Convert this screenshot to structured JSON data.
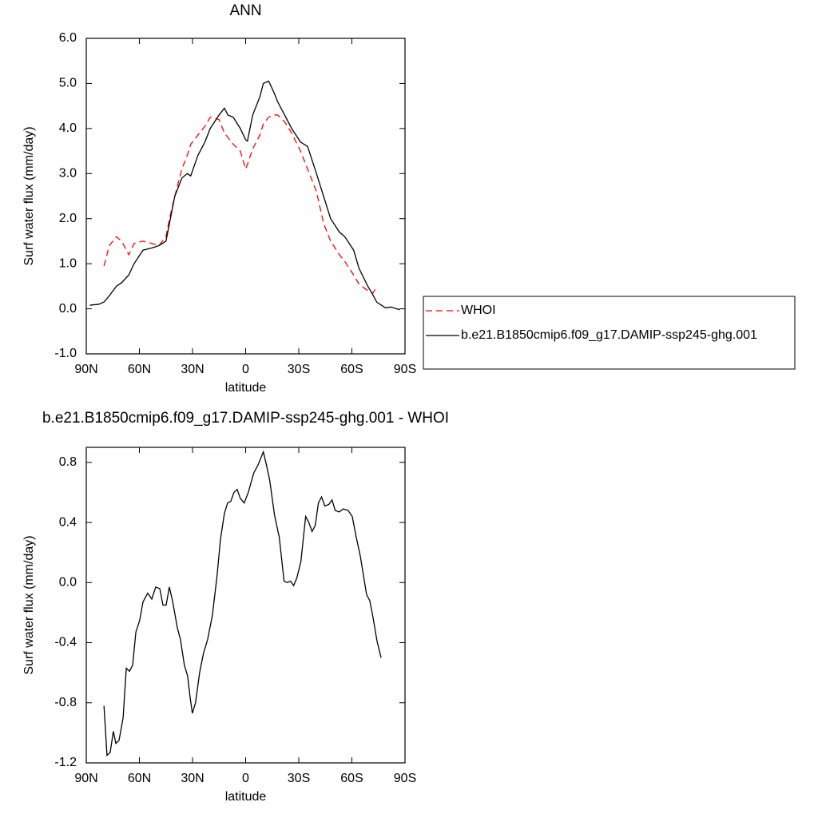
{
  "chart_data": [
    {
      "type": "line",
      "title": "ANN",
      "x_label": "latitude",
      "y_label": "Surf water flux (mm/day)",
      "x": [
        88,
        83,
        80,
        77,
        73,
        70,
        66,
        63,
        58,
        53,
        49,
        45,
        43,
        40,
        36,
        33,
        31,
        27,
        23,
        20,
        15,
        12,
        10,
        7,
        3,
        0,
        -1,
        -4,
        -8,
        -10,
        -13,
        -16,
        -18,
        -22,
        -26,
        -31,
        -35,
        -40,
        -44,
        -48,
        -53,
        -56,
        -61,
        -64,
        -69,
        -72,
        -74,
        -79,
        -82,
        -87
      ],
      "series": [
        {
          "name": "WHOI",
          "color": "#ff0000",
          "linestyle": "dashed",
          "values": [
            null,
            null,
            0.95,
            1.4,
            1.6,
            1.5,
            1.2,
            1.45,
            1.5,
            1.45,
            1.4,
            1.6,
            2.0,
            2.5,
            3.1,
            3.4,
            3.65,
            3.85,
            4.05,
            4.25,
            4.2,
            3.9,
            3.8,
            3.65,
            3.5,
            3.1,
            3.2,
            3.55,
            3.85,
            4.1,
            4.25,
            4.3,
            4.3,
            4.15,
            3.9,
            3.5,
            3.1,
            2.6,
            1.9,
            1.5,
            1.2,
            1.05,
            0.75,
            0.55,
            0.4,
            0.35,
            0.5,
            null,
            null,
            null
          ]
        },
        {
          "name": "b.e21.B1850cmip6.f09_g17.DAMIP-ssp245-ghg.001",
          "color": "#000000",
          "linestyle": "solid",
          "values": [
            0.08,
            0.1,
            0.15,
            0.29,
            0.5,
            0.58,
            0.75,
            1.0,
            1.3,
            1.35,
            1.4,
            1.5,
            1.9,
            2.5,
            2.9,
            3.0,
            2.95,
            3.4,
            3.7,
            4.0,
            4.3,
            4.45,
            4.3,
            4.25,
            4.0,
            3.75,
            3.72,
            4.3,
            4.7,
            5.0,
            5.05,
            4.8,
            4.6,
            4.3,
            4.0,
            3.7,
            3.6,
            3.0,
            2.5,
            2.0,
            1.7,
            1.6,
            1.3,
            0.9,
            0.5,
            0.3,
            0.15,
            0.02,
            0.04,
            -0.02
          ]
        }
      ],
      "xlim": [
        90,
        -90
      ],
      "xticks": [
        {
          "value": 90,
          "label": "90N"
        },
        {
          "value": 60,
          "label": "60N"
        },
        {
          "value": 30,
          "label": "30N"
        },
        0,
        {
          "value": -30,
          "label": "30S"
        },
        {
          "value": -60,
          "label": "60S"
        },
        {
          "value": -90,
          "label": "90S"
        }
      ],
      "ylim": [
        -1,
        6
      ],
      "yticks": [
        {
          "value": -1,
          "label": "-1.0"
        },
        {
          "value": 0,
          "label": "0.0"
        },
        {
          "value": 1,
          "label": "1.0"
        },
        {
          "value": 2,
          "label": "2.0"
        },
        {
          "value": 3,
          "label": "3.0"
        },
        {
          "value": 4,
          "label": "4.0"
        },
        {
          "value": 5,
          "label": "5.0"
        },
        {
          "value": 6,
          "label": "6.0"
        }
      ],
      "legend": "right"
    },
    {
      "type": "line",
      "title": "b.e21.B1850cmip6.f09_g17.DAMIP-ssp245-ghg.001 - WHOI",
      "x_label": "latitude",
      "y_label": "Surf water flux (mm/day)",
      "x": [
        80,
        78.3,
        76.5,
        74.7,
        73.3,
        71.5,
        69.2,
        67.4,
        65.6,
        63.8,
        62,
        59.8,
        58,
        55.3,
        53,
        50.8,
        48.5,
        46.7,
        44.9,
        43.1,
        41.3,
        38.6,
        36.8,
        34.6,
        32.8,
        31.4,
        30.1,
        28.3,
        26,
        23.8,
        21.5,
        18.8,
        16.1,
        14.3,
        12,
        10.2,
        8.4,
        6.6,
        4.8,
        3,
        0.8,
        -1.5,
        -4.6,
        -6.9,
        -10,
        -11.8,
        -13.6,
        -16.3,
        -19,
        -21.7,
        -23.5,
        -25.3,
        -27.1,
        -28.9,
        -31.2,
        -33.9,
        -35.7,
        -37.5,
        -39.3,
        -41.1,
        -42.9,
        -44.7,
        -47,
        -48.8,
        -50.6,
        -52.8,
        -55.1,
        -57.9,
        -60.2,
        -62.5,
        -64.7,
        -66.5,
        -68.3,
        -70.1,
        -71.9,
        -74.2,
        -76.5
      ],
      "values": [
        -0.82,
        -1.15,
        -1.13,
        -0.99,
        -1.07,
        -1.05,
        -0.9,
        -0.57,
        -0.59,
        -0.55,
        -0.33,
        -0.25,
        -0.13,
        -0.07,
        -0.11,
        -0.03,
        -0.04,
        -0.15,
        -0.15,
        -0.03,
        -0.12,
        -0.3,
        -0.38,
        -0.55,
        -0.62,
        -0.76,
        -0.87,
        -0.8,
        -0.6,
        -0.47,
        -0.38,
        -0.22,
        0.05,
        0.28,
        0.46,
        0.53,
        0.54,
        0.6,
        0.62,
        0.56,
        0.53,
        0.6,
        0.73,
        0.78,
        0.87,
        0.78,
        0.68,
        0.45,
        0.3,
        0.01,
        0.0,
        0.01,
        -0.02,
        0.03,
        0.14,
        0.44,
        0.4,
        0.34,
        0.38,
        0.53,
        0.57,
        0.51,
        0.52,
        0.55,
        0.48,
        0.47,
        0.49,
        0.48,
        0.44,
        0.3,
        0.18,
        0.05,
        -0.08,
        -0.12,
        -0.23,
        -0.39,
        -0.5
      ],
      "color": "#000000",
      "xlim": [
        90,
        -90
      ],
      "xticks": [
        {
          "value": 90,
          "label": "90N"
        },
        {
          "value": 60,
          "label": "60N"
        },
        {
          "value": 30,
          "label": "30N"
        },
        0,
        {
          "value": -30,
          "label": "30S"
        },
        {
          "value": -60,
          "label": "60S"
        },
        {
          "value": -90,
          "label": "90S"
        }
      ],
      "ylim": [
        -1.2,
        0.9
      ],
      "yticks": [
        -1.2,
        -0.8,
        -0.4,
        {
          "value": 0,
          "label": "0.0"
        },
        0.4,
        0.8
      ]
    }
  ]
}
